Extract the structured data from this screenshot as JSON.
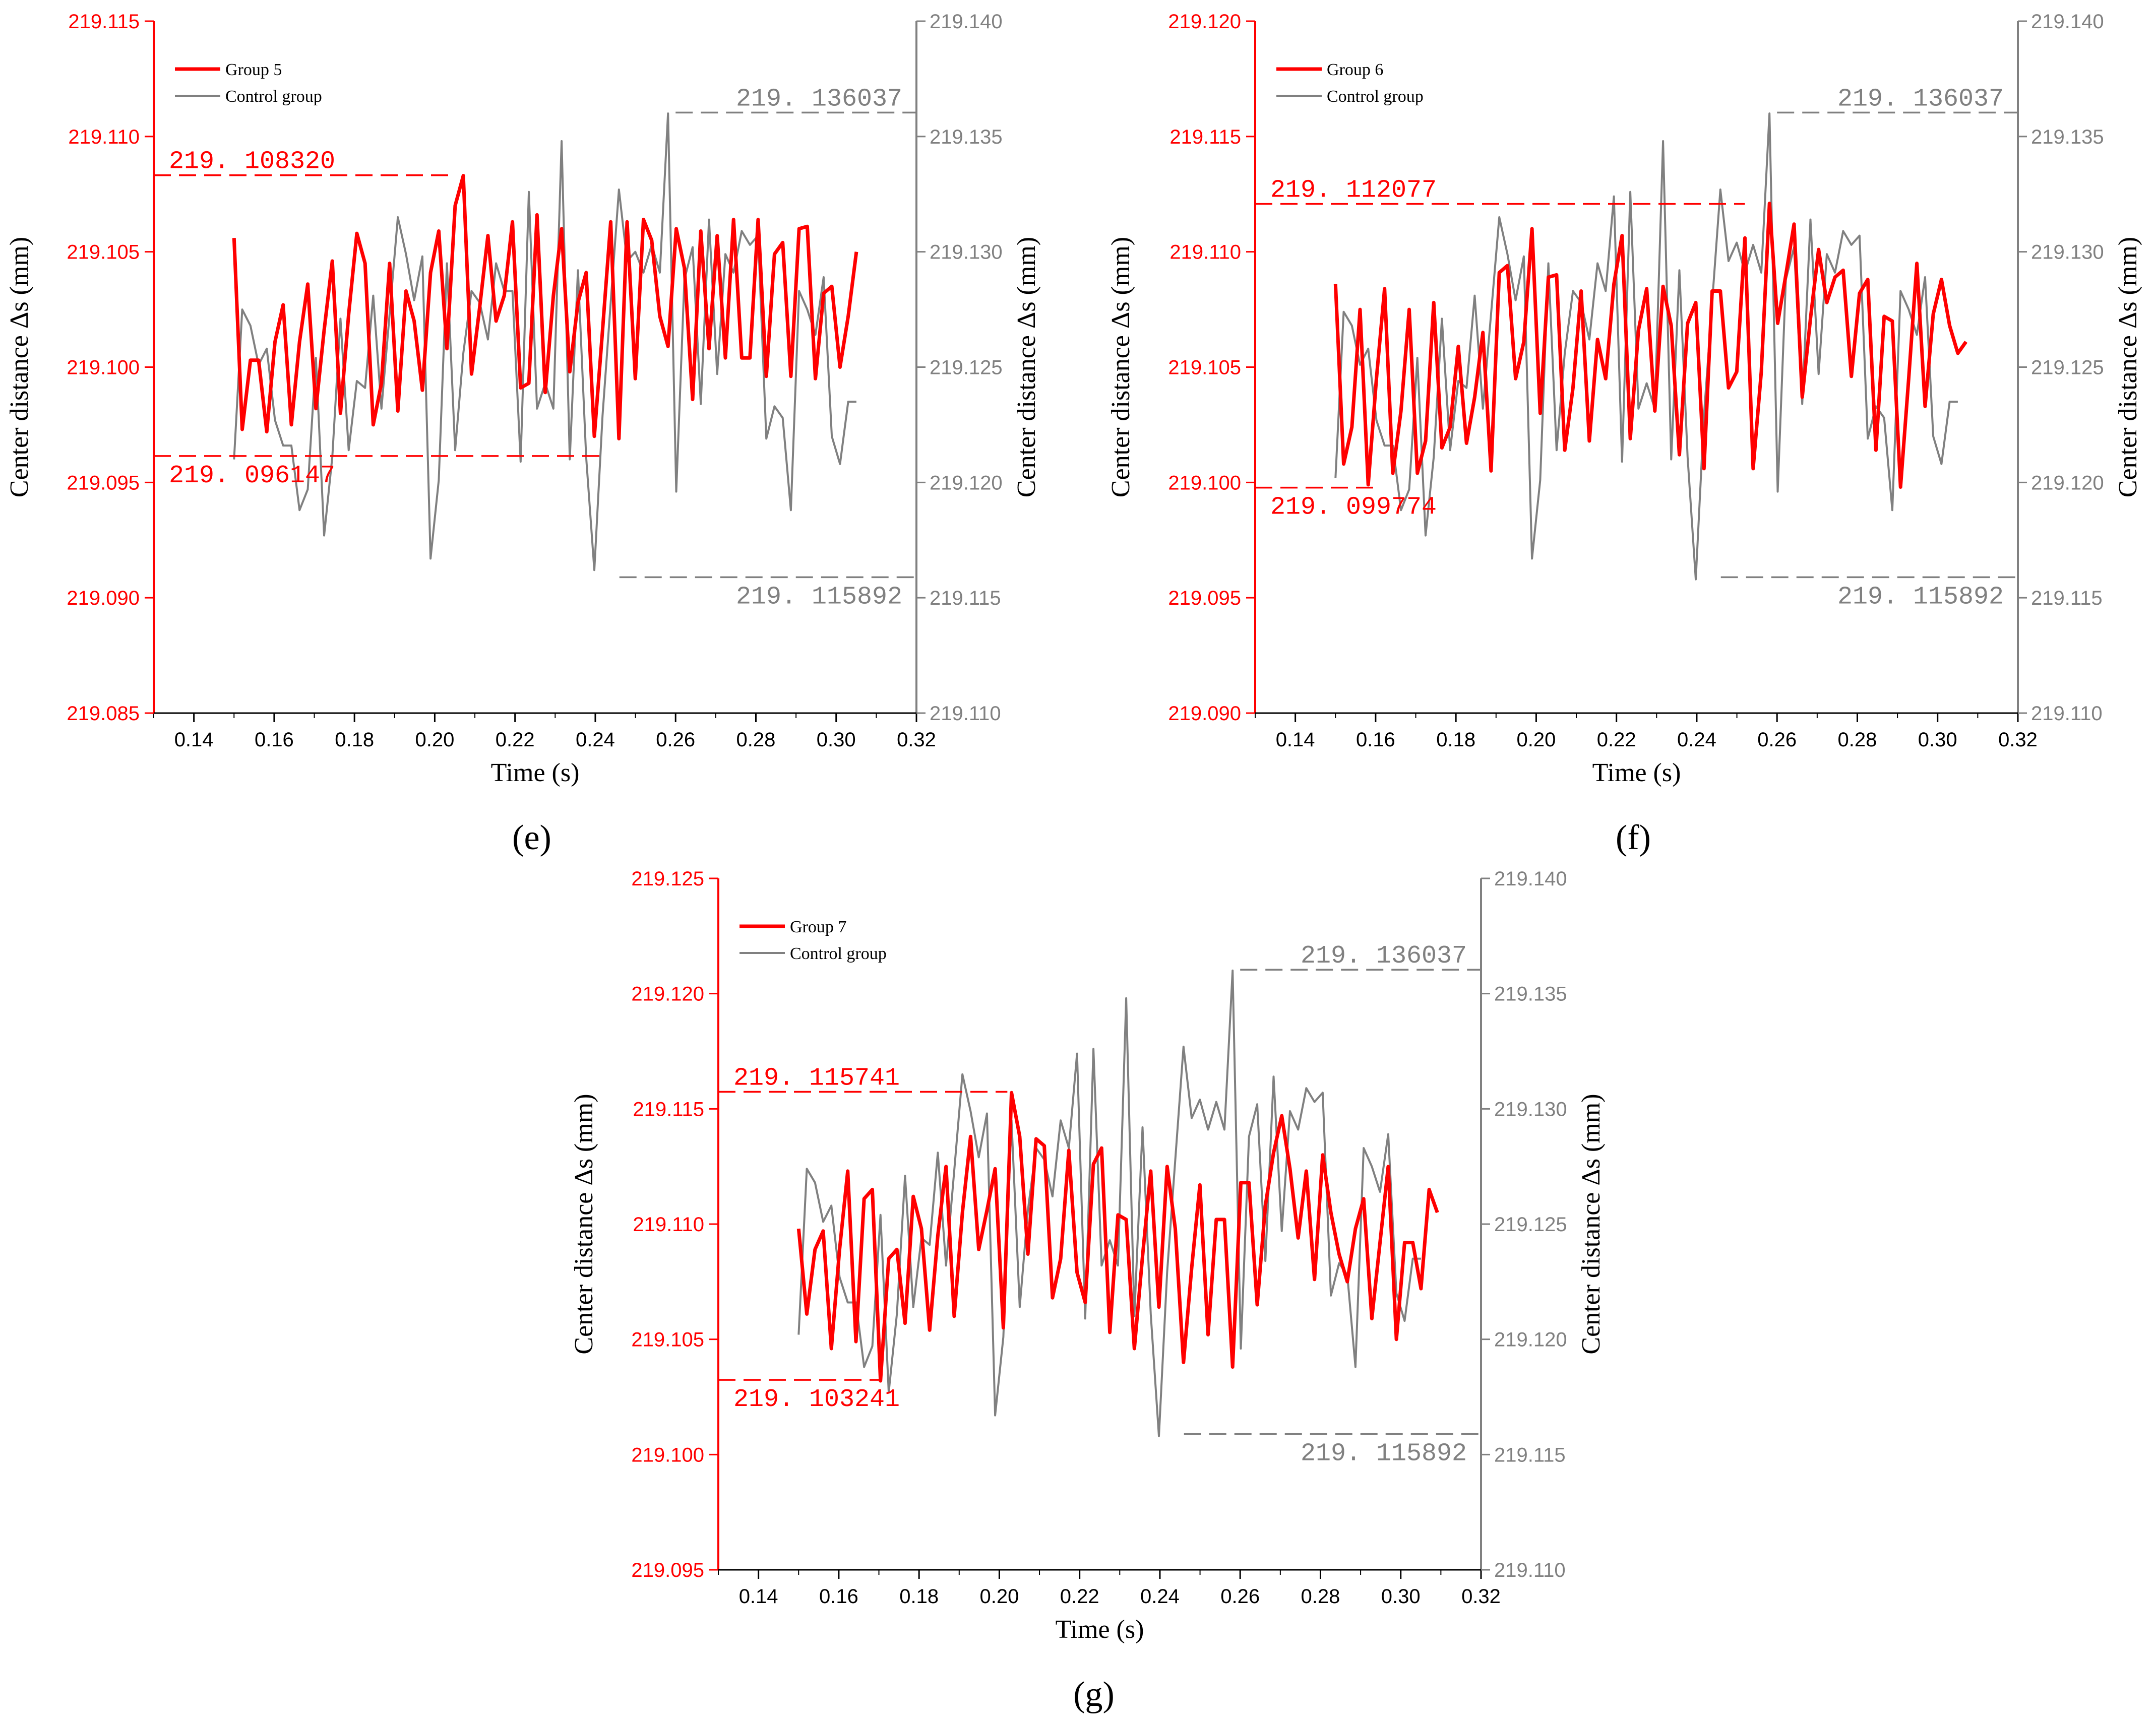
{
  "figure": {
    "panel_labels": [
      "(e)",
      "(f)",
      "(g)"
    ],
    "colors": {
      "group": "#ff0000",
      "control": "#808080",
      "axis": "#000000"
    }
  },
  "chart_data": [
    {
      "type": "line",
      "panel_label": "(e)",
      "title": "",
      "xlabel": "Time (s)",
      "ylabel": "Center distance Δs (mm)",
      "ylabel_right": "Center distance Δs (mm)",
      "xlim": [
        0.13,
        0.32
      ],
      "x_ticks": [
        "0.14",
        "0.16",
        "0.18",
        "0.20",
        "0.22",
        "0.24",
        "0.26",
        "0.28",
        "0.30",
        "0.32"
      ],
      "y_left_lim": [
        219.085,
        219.115
      ],
      "y_left_ticks": [
        "219.085",
        "219.090",
        "219.095",
        "219.100",
        "219.105",
        "219.110",
        "219.115"
      ],
      "y_right_lim": [
        219.11,
        219.14
      ],
      "y_right_ticks": [
        "219.110",
        "219.115",
        "219.120",
        "219.125",
        "219.130",
        "219.135",
        "219.140"
      ],
      "legend": {
        "position": "top-left",
        "entries": [
          "Group 5",
          "Control group"
        ]
      },
      "series": [
        {
          "name": "Group 5",
          "axis": "left",
          "x_start": 0.15,
          "x_step": 0.00204,
          "values": [
            219.1056,
            219.0973,
            219.1003,
            219.1003,
            219.0972,
            219.1011,
            219.1027,
            219.0975,
            219.1011,
            219.1036,
            219.0982,
            219.1016,
            219.1046,
            219.098,
            219.1023,
            219.1058,
            219.1045,
            219.0975,
            219.0993,
            219.1045,
            219.0981,
            219.1033,
            219.102,
            219.099,
            219.1041,
            219.1059,
            219.1008,
            219.107,
            219.1083,
            219.0997,
            219.1026,
            219.1057,
            219.102,
            219.1031,
            219.1063,
            219.0991,
            219.0993,
            219.1066,
            219.0989,
            219.1031,
            219.106,
            219.0998,
            219.1028,
            219.1041,
            219.097,
            219.1016,
            219.1063,
            219.0969,
            219.1063,
            219.0995,
            219.1064,
            219.1055,
            219.1022,
            219.1009,
            219.106,
            219.1043,
            219.0986,
            219.1059,
            219.1008,
            219.1057,
            219.1004,
            219.1064,
            219.1004,
            219.1004,
            219.1064,
            219.0996,
            219.1049,
            219.1054,
            219.0996,
            219.106,
            219.1061,
            219.0995,
            219.1032,
            219.1035,
            219.1,
            219.1022,
            219.105
          ]
        },
        {
          "name": "Control group",
          "axis": "right",
          "x_start": 0.15,
          "x_step": 0.00204,
          "values": [
            219.121,
            219.1275,
            219.1268,
            219.1251,
            219.1258,
            219.1227,
            219.1216,
            219.1216,
            219.1188,
            219.1197,
            219.1254,
            219.1177,
            219.1211,
            219.1271,
            219.1214,
            219.1244,
            219.1241,
            219.1281,
            219.1232,
            219.1273,
            219.1315,
            219.1299,
            219.1279,
            219.1298,
            219.1167,
            219.1201,
            219.1295,
            219.1214,
            219.1256,
            219.1283,
            219.1278,
            219.1262,
            219.1295,
            219.1283,
            219.1283,
            219.1209,
            219.1326,
            219.1232,
            219.1243,
            219.1232,
            219.1348,
            219.121,
            219.1292,
            219.1211,
            219.1162,
            219.1229,
            219.1278,
            219.1327,
            219.1296,
            219.13,
            219.1291,
            219.1303,
            219.1291,
            219.136,
            219.1196,
            219.1288,
            219.1302,
            219.1234,
            219.1314,
            219.1247,
            219.1299,
            219.1291,
            219.1309,
            219.1303,
            219.1307,
            219.1219,
            219.1233,
            219.1228,
            219.1188,
            219.1283,
            219.1275,
            219.1264,
            219.1289,
            219.122,
            219.1208,
            219.1235,
            219.1235
          ]
        }
      ],
      "annotations": [
        {
          "text": "219. 108320",
          "axis": "left",
          "y": 219.10832,
          "x_from": 0.13,
          "x_to": 0.204,
          "label_side": "above"
        },
        {
          "text": "219. 096147",
          "axis": "left",
          "y": 219.096147,
          "x_from": 0.13,
          "x_to": 0.241,
          "label_side": "below"
        },
        {
          "text": "219. 136037",
          "axis": "right",
          "y": 219.136037,
          "x_from": 0.26,
          "x_to": 0.32,
          "label_side": "above"
        },
        {
          "text": "219. 115892",
          "axis": "right",
          "y": 219.115892,
          "x_from": 0.246,
          "x_to": 0.32,
          "label_side": "below"
        }
      ]
    },
    {
      "type": "line",
      "panel_label": "(f)",
      "title": "",
      "xlabel": "Time (s)",
      "ylabel": "Center distance Δs (mm)",
      "ylabel_right": "Center distance Δs (mm)",
      "xlim": [
        0.13,
        0.32
      ],
      "x_ticks": [
        "0.14",
        "0.16",
        "0.18",
        "0.20",
        "0.22",
        "0.24",
        "0.26",
        "0.28",
        "0.30",
        "0.32"
      ],
      "y_left_lim": [
        219.09,
        219.12
      ],
      "y_left_ticks": [
        "219.090",
        "219.095",
        "219.100",
        "219.105",
        "219.110",
        "219.115",
        "219.120"
      ],
      "y_right_lim": [
        219.11,
        219.14
      ],
      "y_right_ticks": [
        "219.110",
        "219.115",
        "219.120",
        "219.125",
        "219.130",
        "219.135",
        "219.140"
      ],
      "legend": {
        "position": "top-left",
        "entries": [
          "Group 6",
          "Control group"
        ]
      },
      "series": [
        {
          "name": "Group 6",
          "axis": "left",
          "x_start": 0.15,
          "x_step": 0.00204,
          "values": [
            219.1086,
            219.1008,
            219.1024,
            219.1075,
            219.0999,
            219.1045,
            219.1084,
            219.1004,
            219.1031,
            219.1075,
            219.1004,
            219.1018,
            219.1078,
            219.1015,
            219.1024,
            219.1059,
            219.1017,
            219.1037,
            219.1065,
            219.1005,
            219.1091,
            219.1094,
            219.1045,
            219.1061,
            219.111,
            219.103,
            219.1089,
            219.109,
            219.1014,
            219.1041,
            219.1083,
            219.1018,
            219.1062,
            219.1045,
            219.1086,
            219.1107,
            219.1019,
            219.1066,
            219.1084,
            219.1031,
            219.1085,
            219.1068,
            219.1012,
            219.1069,
            219.1078,
            219.1006,
            219.1083,
            219.1083,
            219.1041,
            219.1048,
            219.1106,
            219.1006,
            219.1048,
            219.1121,
            219.1069,
            219.109,
            219.1112,
            219.1037,
            219.1071,
            219.1101,
            219.1078,
            219.1089,
            219.1092,
            219.1046,
            219.1082,
            219.1088,
            219.1014,
            219.1072,
            219.107,
            219.0998,
            219.1045,
            219.1095,
            219.1033,
            219.1073,
            219.1088,
            219.1068,
            219.1056,
            219.1061
          ]
        },
        {
          "name": "Control group",
          "axis": "right",
          "x_start": 0.15,
          "x_step": 0.00204,
          "values": [
            219.1202,
            219.1274,
            219.1268,
            219.1251,
            219.1258,
            219.1227,
            219.1216,
            219.1216,
            219.1188,
            219.1197,
            219.1254,
            219.1177,
            219.1211,
            219.1271,
            219.1214,
            219.1244,
            219.1241,
            219.1281,
            219.1232,
            219.1273,
            219.1315,
            219.1299,
            219.1279,
            219.1298,
            219.1167,
            219.1201,
            219.1295,
            219.1214,
            219.1256,
            219.1283,
            219.1278,
            219.1262,
            219.1295,
            219.1283,
            219.1324,
            219.1209,
            219.1326,
            219.1232,
            219.1243,
            219.1232,
            219.1348,
            219.121,
            219.1292,
            219.1211,
            219.1158,
            219.1229,
            219.1278,
            219.1327,
            219.1296,
            219.1304,
            219.1291,
            219.1303,
            219.1291,
            219.136,
            219.1196,
            219.1288,
            219.1302,
            219.1234,
            219.1314,
            219.1247,
            219.1299,
            219.1291,
            219.1309,
            219.1303,
            219.1307,
            219.1219,
            219.1233,
            219.1228,
            219.1188,
            219.1283,
            219.1275,
            219.1264,
            219.1289,
            219.122,
            219.1208,
            219.1235,
            219.1235
          ]
        }
      ],
      "annotations": [
        {
          "text": "219. 112077",
          "axis": "left",
          "y": 219.112077,
          "x_from": 0.13,
          "x_to": 0.252,
          "label_side": "above"
        },
        {
          "text": "219. 099774",
          "axis": "left",
          "y": 219.099774,
          "x_from": 0.13,
          "x_to": 0.161,
          "label_side": "below"
        },
        {
          "text": "219. 136037",
          "axis": "right",
          "y": 219.136037,
          "x_from": 0.26,
          "x_to": 0.32,
          "label_side": "above"
        },
        {
          "text": "219. 115892",
          "axis": "right",
          "y": 219.115892,
          "x_from": 0.246,
          "x_to": 0.32,
          "label_side": "below"
        }
      ]
    },
    {
      "type": "line",
      "panel_label": "(g)",
      "title": "",
      "xlabel": "Time (s)",
      "ylabel": "Center distance Δs (mm)",
      "ylabel_right": "Center distance Δs (mm)",
      "xlim": [
        0.13,
        0.32
      ],
      "x_ticks": [
        "0.14",
        "0.16",
        "0.18",
        "0.20",
        "0.22",
        "0.24",
        "0.26",
        "0.28",
        "0.30",
        "0.32"
      ],
      "y_left_lim": [
        219.095,
        219.125
      ],
      "y_left_ticks": [
        "219.095",
        "219.100",
        "219.105",
        "219.110",
        "219.115",
        "219.120",
        "219.125"
      ],
      "y_right_lim": [
        219.11,
        219.14
      ],
      "y_right_ticks": [
        "219.110",
        "219.115",
        "219.120",
        "219.125",
        "219.130",
        "219.135",
        "219.140"
      ],
      "legend": {
        "position": "top-left",
        "entries": [
          "Group 7",
          "Control group"
        ]
      },
      "series": [
        {
          "name": "Group 7",
          "axis": "left",
          "x_start": 0.15,
          "x_step": 0.00204,
          "values": [
            219.1098,
            219.1061,
            219.1089,
            219.1097,
            219.1046,
            219.1089,
            219.1123,
            219.1049,
            219.1111,
            219.1115,
            219.1032,
            219.1085,
            219.1089,
            219.1057,
            219.1112,
            219.1098,
            219.1054,
            219.1095,
            219.1125,
            219.106,
            219.1105,
            219.1138,
            219.1089,
            219.1106,
            219.1124,
            219.1055,
            219.1157,
            219.1138,
            219.1087,
            219.1137,
            219.1134,
            219.1068,
            219.1085,
            219.1132,
            219.1079,
            219.1066,
            219.1126,
            219.1133,
            219.1053,
            219.1104,
            219.1102,
            219.1046,
            219.1086,
            219.1123,
            219.1064,
            219.1125,
            219.1098,
            219.104,
            219.1081,
            219.1117,
            219.1052,
            219.1102,
            219.1102,
            219.1038,
            219.1118,
            219.1118,
            219.1065,
            219.1108,
            219.1131,
            219.1147,
            219.1124,
            219.1094,
            219.1123,
            219.1076,
            219.113,
            219.1105,
            219.1087,
            219.1075,
            219.1098,
            219.1111,
            219.1059,
            219.1092,
            219.1125,
            219.105,
            219.1092,
            219.1092,
            219.1072,
            219.1115,
            219.1105
          ]
        },
        {
          "name": "Control group",
          "axis": "right",
          "x_start": 0.15,
          "x_step": 0.00204,
          "values": [
            219.1202,
            219.1274,
            219.1268,
            219.1251,
            219.1258,
            219.1227,
            219.1216,
            219.1216,
            219.1188,
            219.1197,
            219.1254,
            219.1177,
            219.1211,
            219.1271,
            219.1214,
            219.1244,
            219.1241,
            219.1281,
            219.1232,
            219.1273,
            219.1315,
            219.1299,
            219.1279,
            219.1298,
            219.1167,
            219.1201,
            219.1295,
            219.1214,
            219.1256,
            219.1283,
            219.1278,
            219.1262,
            219.1295,
            219.1283,
            219.1324,
            219.1209,
            219.1326,
            219.1232,
            219.1243,
            219.1232,
            219.1348,
            219.121,
            219.1292,
            219.1211,
            219.1158,
            219.1229,
            219.1278,
            219.1327,
            219.1296,
            219.1304,
            219.1291,
            219.1303,
            219.1291,
            219.136,
            219.1196,
            219.1288,
            219.1302,
            219.1234,
            219.1314,
            219.1247,
            219.1299,
            219.1291,
            219.1309,
            219.1303,
            219.1307,
            219.1219,
            219.1233,
            219.1228,
            219.1188,
            219.1283,
            219.1275,
            219.1264,
            219.1289,
            219.122,
            219.1208,
            219.1235,
            219.1235
          ]
        }
      ],
      "annotations": [
        {
          "text": "219. 115741",
          "axis": "left",
          "y": 219.115741,
          "x_from": 0.13,
          "x_to": 0.202,
          "label_side": "above"
        },
        {
          "text": "219. 103241",
          "axis": "left",
          "y": 219.103241,
          "x_from": 0.13,
          "x_to": 0.17,
          "label_side": "below"
        },
        {
          "text": "219. 136037",
          "axis": "right",
          "y": 219.136037,
          "x_from": 0.26,
          "x_to": 0.32,
          "label_side": "above"
        },
        {
          "text": "219. 115892",
          "axis": "right",
          "y": 219.115892,
          "x_from": 0.246,
          "x_to": 0.32,
          "label_side": "below"
        }
      ]
    }
  ]
}
